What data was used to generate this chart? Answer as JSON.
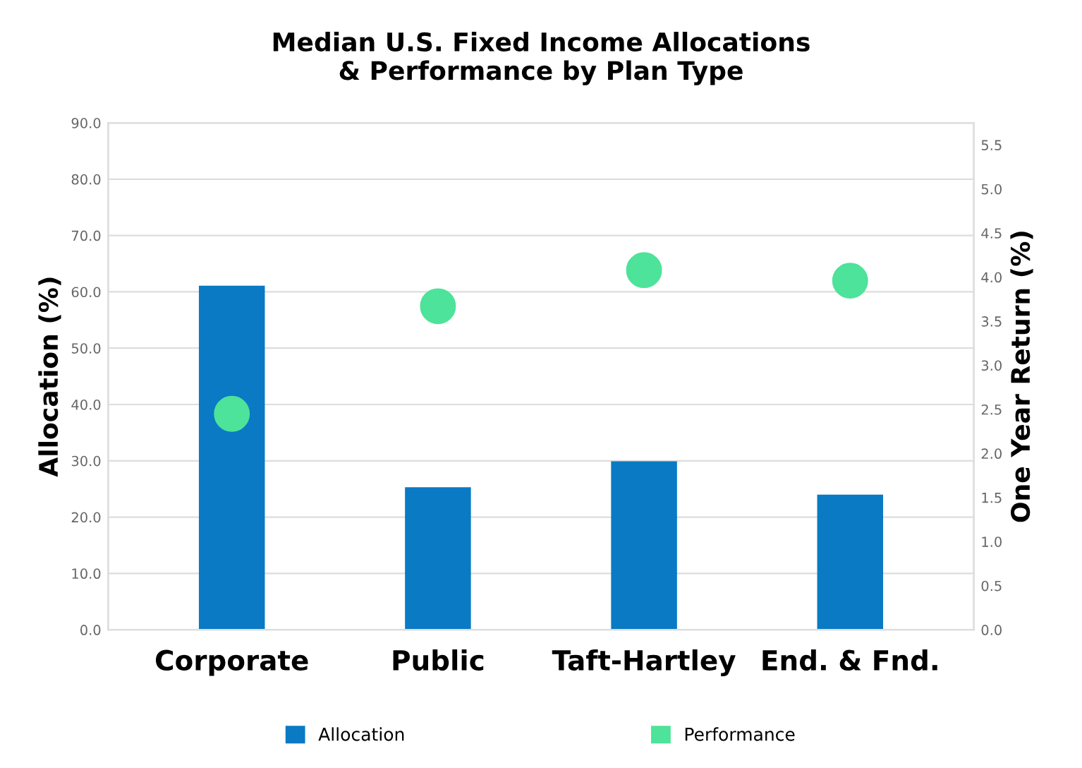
{
  "chart_data": {
    "type": "bar",
    "title": "Median U.S. Fixed Income Allocations\n& Performance by Plan Type",
    "ylabel": "Allocation (%)",
    "y2label": "One Year Return (%)",
    "categories": [
      "Corporate",
      "Public",
      "Taft-Hartley",
      "End. & Fnd."
    ],
    "series": [
      {
        "name": "Allocation",
        "color": "#0a7ac4",
        "values": [
          61.1,
          25.3,
          29.9,
          24.0
        ]
      },
      {
        "name": "Performance",
        "type": "scatter",
        "axis": "y2",
        "color": "#4de39a",
        "values": [
          2.45,
          3.67,
          4.08,
          3.96
        ]
      }
    ],
    "ylim": [
      0,
      90
    ],
    "yticks": [
      {
        "value": 0,
        "label": "0.0"
      },
      {
        "value": 10,
        "label": "10.0"
      },
      {
        "value": 20,
        "label": "20.0"
      },
      {
        "value": 30,
        "label": "30.0"
      },
      {
        "value": 40,
        "label": "40.0"
      },
      {
        "value": 50,
        "label": "50.0"
      },
      {
        "value": 60,
        "label": "60.0"
      },
      {
        "value": 70,
        "label": "70.0"
      },
      {
        "value": 80,
        "label": "80.0"
      },
      {
        "value": 90,
        "label": "90.0"
      }
    ],
    "y2lim": [
      0,
      5.75
    ],
    "y2ticks": [
      {
        "value": 0,
        "label": "0.0"
      },
      0.5,
      {
        "value": 1,
        "label": "1.0"
      },
      1.5,
      {
        "value": 2,
        "label": "2.0"
      },
      2.5,
      {
        "value": 3,
        "label": "3.0"
      },
      3.5,
      {
        "value": 4,
        "label": "4.0"
      },
      4.5,
      {
        "value": 5,
        "label": "5.0"
      },
      5.5
    ],
    "grid": "y",
    "legend": "bottom",
    "marker": "circle"
  }
}
